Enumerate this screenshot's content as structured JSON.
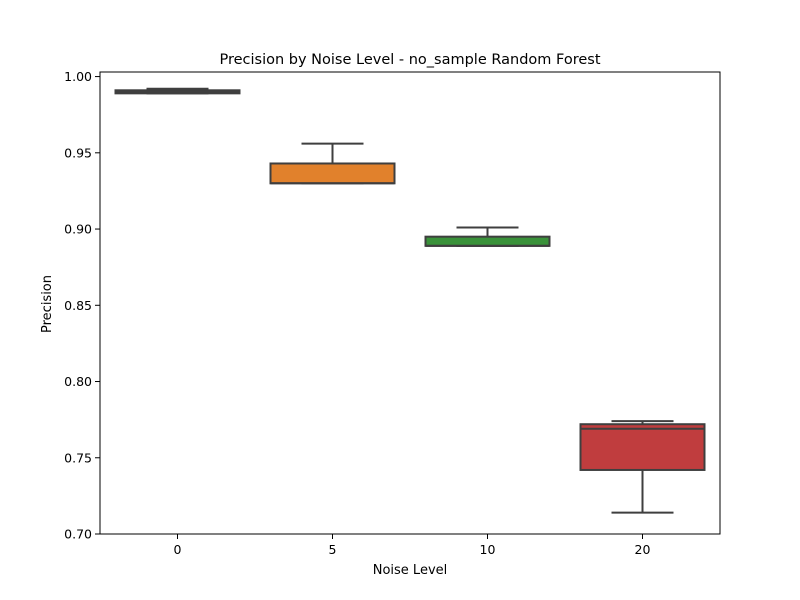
{
  "chart_data": {
    "type": "box",
    "title": "Precision by Noise Level - no_sample Random Forest",
    "xlabel": "Noise Level",
    "ylabel": "Precision",
    "categories": [
      "0",
      "5",
      "10",
      "20"
    ],
    "ylim": [
      0.7,
      1.003
    ],
    "yticks": [
      "0.70",
      "0.75",
      "0.80",
      "0.85",
      "0.90",
      "0.95",
      "1.00"
    ],
    "grid": false,
    "boxes": [
      {
        "category": "0",
        "whisker_low": 0.989,
        "q1": 0.989,
        "median": 0.99,
        "q3": 0.991,
        "whisker_high": 0.992,
        "color": "#3a75af"
      },
      {
        "category": "5",
        "whisker_low": 0.93,
        "q1": 0.93,
        "median": 0.93,
        "q3": 0.943,
        "whisker_high": 0.956,
        "color": "#e1812c"
      },
      {
        "category": "10",
        "whisker_low": 0.889,
        "q1": 0.889,
        "median": 0.889,
        "q3": 0.895,
        "whisker_high": 0.901,
        "color": "#3a923a"
      },
      {
        "category": "20",
        "whisker_low": 0.714,
        "q1": 0.742,
        "median": 0.769,
        "q3": 0.772,
        "whisker_high": 0.774,
        "color": "#c03d3e"
      }
    ]
  }
}
